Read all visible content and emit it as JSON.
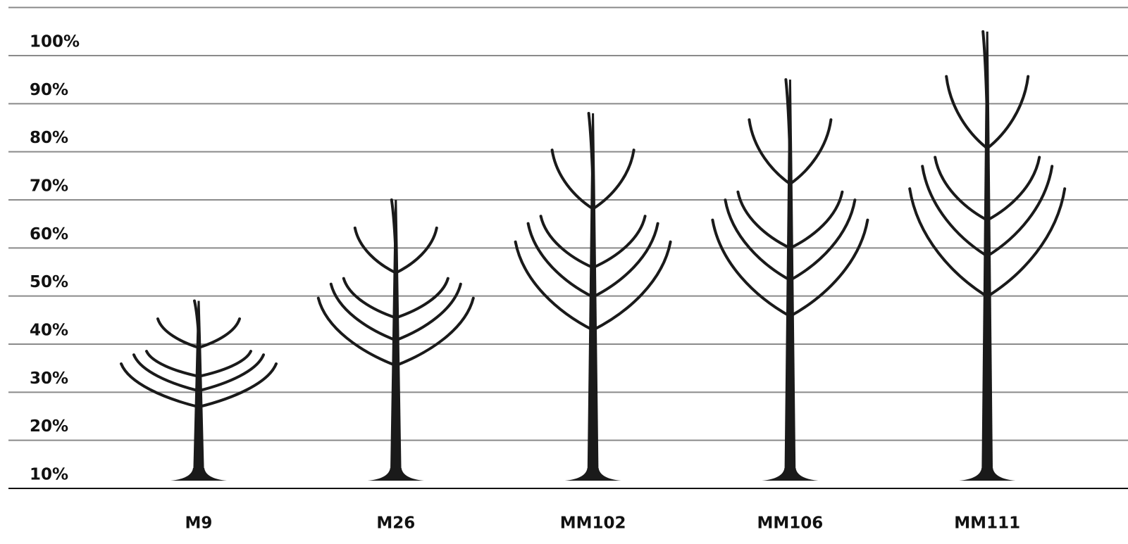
{
  "chart_data": {
    "type": "pictogram",
    "categories": [
      "M9",
      "M26",
      "MM102",
      "MM106",
      "MM111"
    ],
    "values": [
      49,
      70,
      88,
      95,
      105
    ],
    "color": "#1a1a1a",
    "ylim": [
      10,
      110
    ],
    "yticks": [
      {
        "value": 10,
        "label": "10%"
      },
      {
        "value": 20,
        "label": "20%"
      },
      {
        "value": 30,
        "label": "30%"
      },
      {
        "value": 40,
        "label": "40%"
      },
      {
        "value": 50,
        "label": "50%"
      },
      {
        "value": 60,
        "label": "60%"
      },
      {
        "value": 70,
        "label": "70%"
      },
      {
        "value": 80,
        "label": "80%"
      },
      {
        "value": 90,
        "label": "90%"
      },
      {
        "value": 100,
        "label": "100%"
      }
    ],
    "grid": true
  }
}
